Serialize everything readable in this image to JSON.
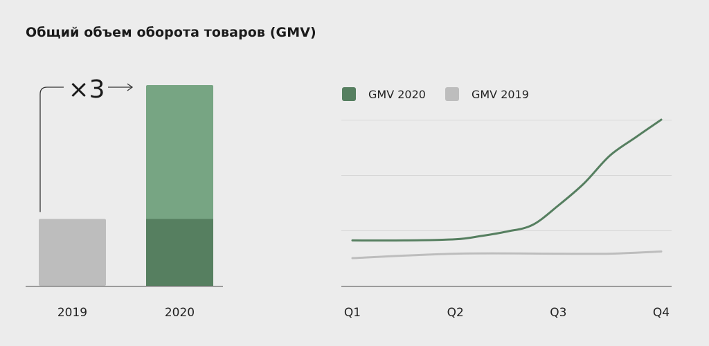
{
  "title": "Общий объем оборота товаров (GMV)",
  "colors": {
    "gmv2019": "#bdbdbd",
    "gmv2020_dark": "#567f60",
    "gmv2020_light": "#77a583",
    "axis": "#444444",
    "grid": "#d6d6d6"
  },
  "chart_data": [
    {
      "type": "bar",
      "categories": [
        "2019",
        "2020"
      ],
      "values": [
        1,
        3
      ],
      "stack_base": [
        1,
        1
      ],
      "annotation": "×3",
      "ylim": [
        0,
        3
      ]
    },
    {
      "type": "line",
      "legend_position": "top-left",
      "grid": true,
      "categories": [
        "Q1",
        "Q2",
        "Q3",
        "Q4"
      ],
      "ylim": [
        0,
        3
      ],
      "series": [
        {
          "name": "GMV 2020",
          "color": "#567f60",
          "x": [
            0,
            0.5,
            1,
            1.25,
            1.5,
            1.75,
            2,
            2.25,
            2.5,
            2.75,
            3
          ],
          "y": [
            0.82,
            0.82,
            0.84,
            0.9,
            0.98,
            1.1,
            1.45,
            1.85,
            2.35,
            2.68,
            3.0
          ]
        },
        {
          "name": "GMV 2019",
          "color": "#bdbdbd",
          "x": [
            0,
            1,
            2,
            2.5,
            3
          ],
          "y": [
            0.5,
            0.58,
            0.58,
            0.58,
            0.62
          ]
        }
      ]
    }
  ]
}
